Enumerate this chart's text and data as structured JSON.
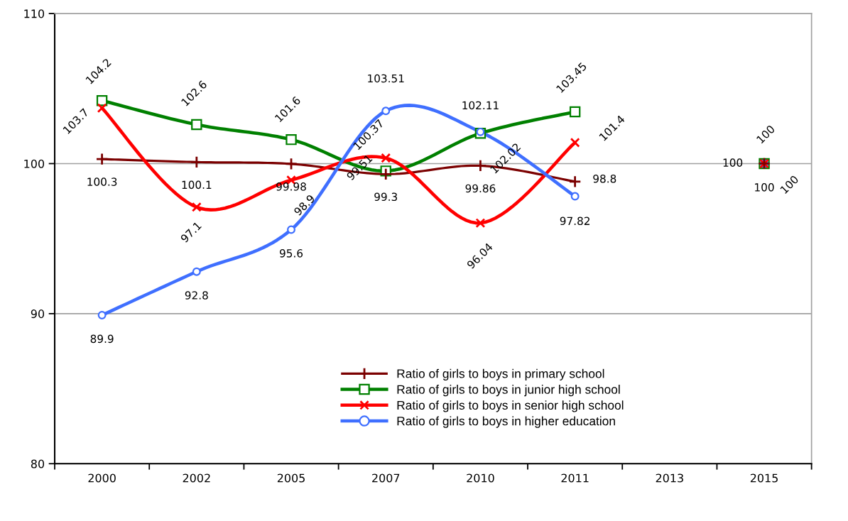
{
  "chart_data": {
    "type": "line",
    "categories": [
      "2000",
      "2002",
      "2005",
      "2007",
      "2010",
      "2011",
      "2013",
      "2015"
    ],
    "ylim": [
      80,
      110
    ],
    "yticks": [
      80,
      90,
      100,
      110
    ],
    "grid": "y",
    "legend": "bottom",
    "line_style": "solid",
    "series": [
      {
        "name": "Ratio of girls to boys in primary school",
        "color": "#7b0000",
        "marker": "plus",
        "values": [
          100.3,
          100.1,
          99.98,
          99.3,
          99.86,
          98.8,
          null,
          100
        ],
        "value_labels": [
          "100.3",
          "100.1",
          "99.98",
          "99.3",
          "99.86",
          "98.8",
          null,
          "100"
        ]
      },
      {
        "name": "Ratio of girls to boys in junior high school",
        "color": "#008000",
        "marker": "square",
        "values": [
          104.2,
          102.6,
          101.6,
          99.51,
          102.02,
          103.45,
          null,
          100
        ],
        "value_labels": [
          "104.2",
          "102.6",
          "101.6",
          "99.51",
          "102.02",
          "103.45",
          null,
          "100"
        ]
      },
      {
        "name": "Ratio of girls to boys in senior high school",
        "color": "#ff0000",
        "marker": "cross",
        "values": [
          103.7,
          97.1,
          98.9,
          100.37,
          96.04,
          101.4,
          null,
          100
        ],
        "value_labels": [
          "103.7",
          "97.1",
          "98.9",
          "100.37",
          "96.04",
          "101.4",
          null,
          "100"
        ]
      },
      {
        "name": "Ratio of girls to boys in higher education",
        "color": "#3f6fff",
        "marker": "circle",
        "values": [
          89.9,
          92.8,
          95.6,
          103.51,
          102.11,
          97.82,
          null,
          100
        ],
        "value_labels": [
          "89.9",
          "92.8",
          "95.6",
          "103.51",
          "102.11",
          "97.82",
          null,
          "100"
        ]
      }
    ]
  }
}
